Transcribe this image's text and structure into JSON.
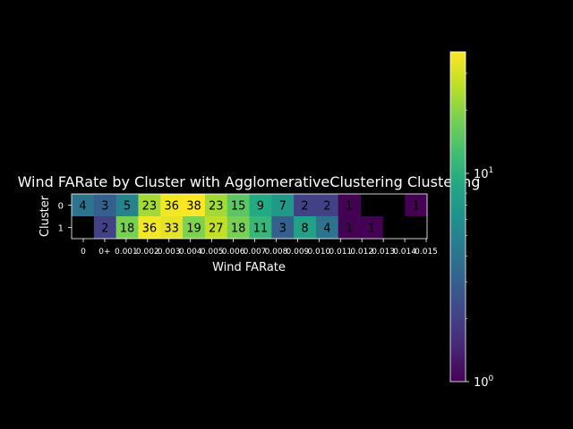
{
  "chart_data": {
    "type": "heatmap",
    "title": "Wind FARate by Cluster with AgglomerativeClustering Clustering",
    "xlabel": "Wind FARate",
    "ylabel": "Cluster",
    "y_categories": [
      "0",
      "1"
    ],
    "x_tick_labels": [
      "0",
      "0+",
      "0.001",
      "0.002",
      "0.003",
      "0.004",
      "0.005",
      "0.006",
      "0.007",
      "0.008",
      "0.009",
      "0.010",
      "0.011",
      "0.012",
      "0.013",
      "0.014",
      "0.015"
    ],
    "values": [
      [
        4,
        3,
        5,
        23,
        36,
        38,
        23,
        15,
        9,
        7,
        2,
        2,
        1,
        null,
        null,
        1
      ],
      [
        null,
        2,
        18,
        36,
        33,
        19,
        27,
        18,
        11,
        3,
        8,
        4,
        1,
        1,
        null,
        null
      ]
    ],
    "colorbar": {
      "scale": "log",
      "colormap": "viridis",
      "range": [
        1,
        38
      ],
      "tick_labels": [
        "10^0",
        "10^1"
      ]
    },
    "grid": false
  }
}
